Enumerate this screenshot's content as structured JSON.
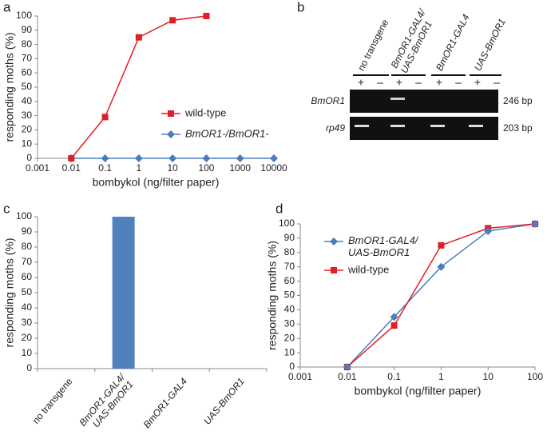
{
  "chart_data": [
    {
      "type": "line",
      "label": "a",
      "xscale": "log",
      "xlabel": "bombykol (ng/filter paper)",
      "ylabel": "responding moths (%)",
      "xlim": [
        0.001,
        10000
      ],
      "xticks": [
        0.001,
        0.01,
        0.1,
        1,
        10,
        100,
        1000,
        10000
      ],
      "ylim": [
        0,
        100
      ],
      "yticks": [
        0,
        10,
        20,
        30,
        40,
        50,
        60,
        70,
        80,
        90,
        100
      ],
      "legend": "center right",
      "series": [
        {
          "name": "wild-type",
          "color": "#e31e26",
          "marker": "square",
          "italic": false,
          "x": [
            0.01,
            0.1,
            1,
            10,
            100
          ],
          "values": [
            0,
            29,
            85,
            97,
            100
          ]
        },
        {
          "name": "BmOR1-/BmOR1-",
          "color": "#4a7ebb",
          "marker": "diamond",
          "italic": true,
          "x": [
            0.01,
            0.1,
            1,
            10,
            100,
            1000,
            10000
          ],
          "values": [
            0,
            0,
            0,
            0,
            0,
            0,
            0
          ]
        }
      ]
    },
    {
      "type": "bar",
      "label": "c",
      "ylabel": "responding moths (%)",
      "color": "#4f81bd",
      "categories": [
        "no transgene",
        "BmOR1-GAL4/\nUAS-BmOR1",
        "BmOR1-GAL4",
        "UAS-BmOR1"
      ],
      "category_italic": [
        false,
        true,
        true,
        true
      ],
      "values": [
        0,
        100,
        0,
        0
      ],
      "ylim": [
        0,
        100
      ],
      "yticks": [
        0,
        10,
        20,
        30,
        40,
        50,
        60,
        70,
        80,
        90,
        100
      ]
    },
    {
      "type": "line",
      "label": "d",
      "xscale": "log",
      "xlabel": "bombykol (ng/filter paper)",
      "ylabel": "responding moths (%)",
      "xlim": [
        0.001,
        100
      ],
      "xticks": [
        0.001,
        0.01,
        0.1,
        1,
        10,
        100
      ],
      "ylim": [
        0,
        100
      ],
      "yticks": [
        0,
        10,
        20,
        30,
        40,
        50,
        60,
        70,
        80,
        90,
        100
      ],
      "legend": "upper left",
      "series": [
        {
          "name": "BmOR1-GAL4/\nUAS-BmOR1",
          "color": "#4a7ebb",
          "marker": "diamond",
          "italic": true,
          "x": [
            0.01,
            0.1,
            1,
            10,
            100
          ],
          "values": [
            0,
            35,
            70,
            95,
            100
          ]
        },
        {
          "name": "wild-type",
          "color": "#e31e26",
          "marker": "square",
          "italic": false,
          "x": [
            0.01,
            0.1,
            1,
            10,
            100
          ],
          "values": [
            0,
            29,
            85,
            97,
            100
          ]
        }
      ]
    }
  ],
  "gel": {
    "label": "b",
    "columns": [
      "no transgene",
      "BmOR1-GAL4/\nUAS-BmOR1",
      "BmOR1-GAL4",
      "UAS-BmOR1"
    ],
    "lanes": [
      "+",
      "–"
    ],
    "rows": [
      "BmOR1",
      "rp49"
    ],
    "sizes": [
      "246 bp",
      "203 bp"
    ]
  }
}
